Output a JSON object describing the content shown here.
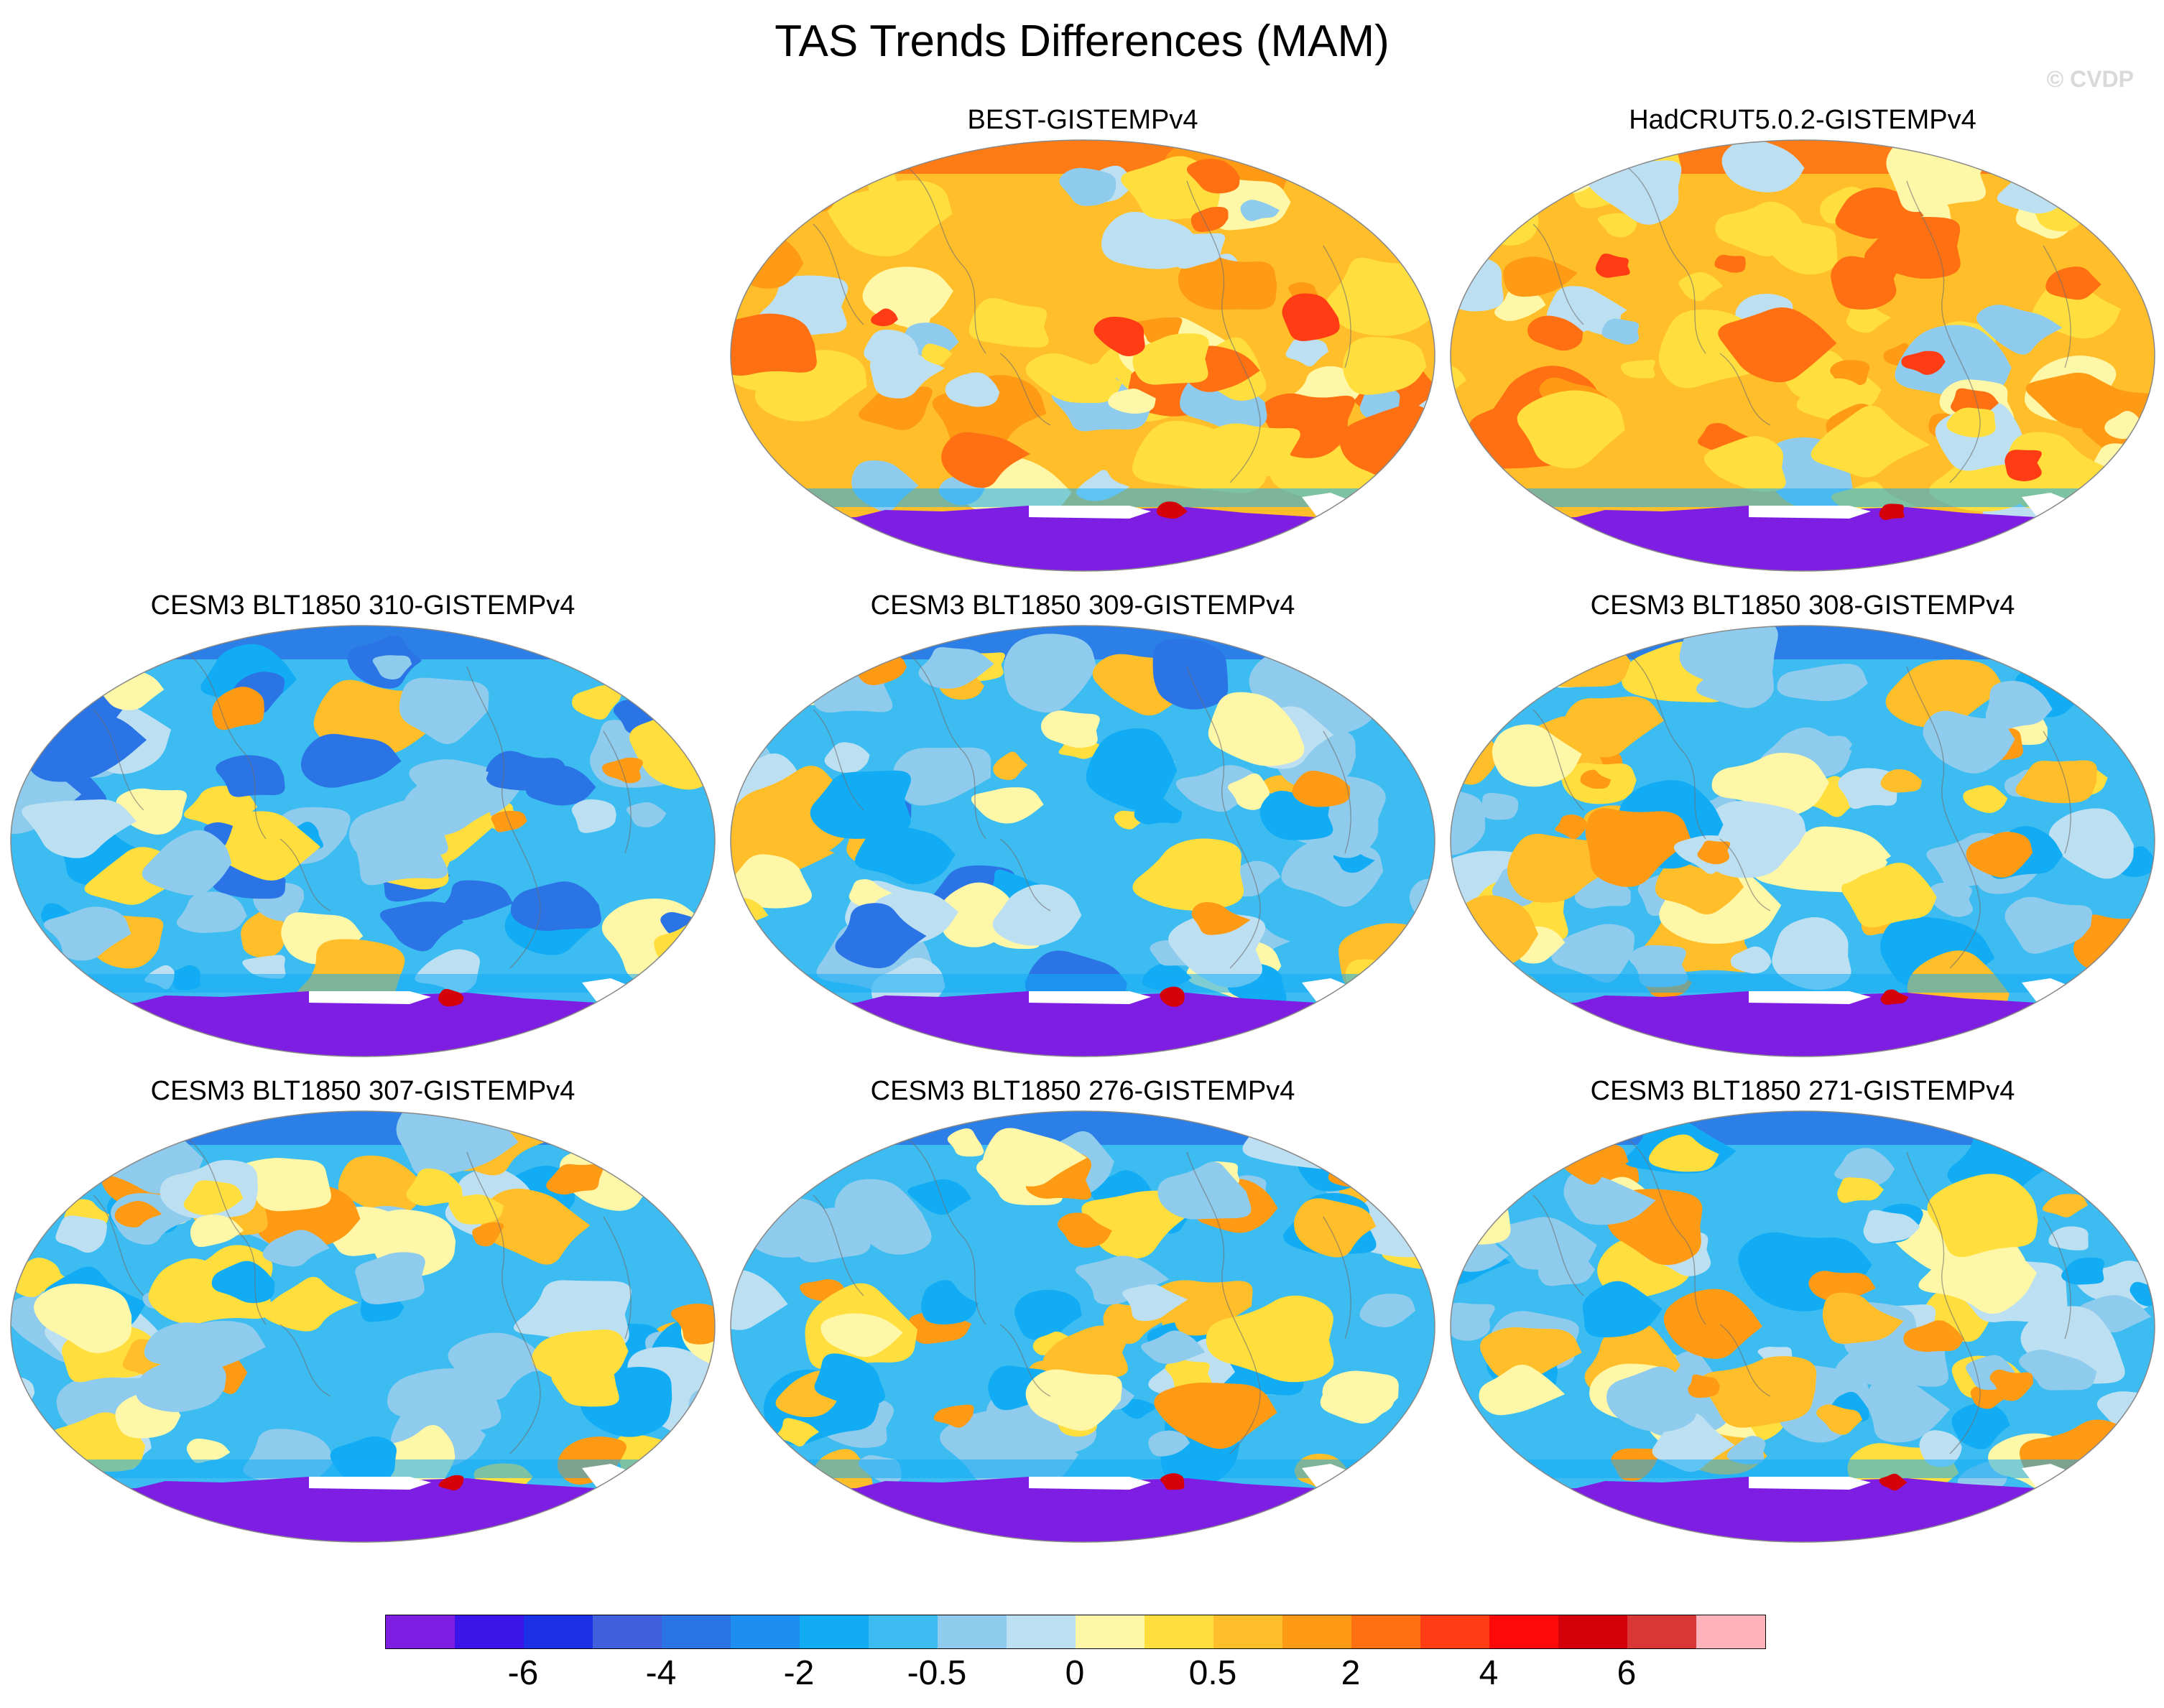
{
  "figure": {
    "title": "TAS Trends Differences (MAM)",
    "credit": "© CVDP"
  },
  "panels": [
    {
      "id": "p1",
      "title": "BEST-GISTEMPv4",
      "pattern": "warm",
      "seed": 3
    },
    {
      "id": "p2",
      "title": "HadCRUT5.0.2-GISTEMPv4",
      "pattern": "warm",
      "seed": 7
    },
    {
      "id": "p3",
      "title": "CESM3 BLT1850 310-GISTEMPv4",
      "pattern": "cold",
      "seed": 11
    },
    {
      "id": "p4",
      "title": "CESM3 BLT1850 309-GISTEMPv4",
      "pattern": "cold",
      "seed": 17
    },
    {
      "id": "p5",
      "title": "CESM3 BLT1850 308-GISTEMPv4",
      "pattern": "mixed",
      "seed": 23
    },
    {
      "id": "p6",
      "title": "CESM3 BLT1850 307-GISTEMPv4",
      "pattern": "mixed",
      "seed": 29
    },
    {
      "id": "p7",
      "title": "CESM3 BLT1850 276-GISTEMPv4",
      "pattern": "mixed",
      "seed": 31
    },
    {
      "id": "p8",
      "title": "CESM3 BLT1850 271-GISTEMPv4",
      "pattern": "mixed",
      "seed": 37
    }
  ],
  "colorbar": {
    "colors": [
      "#7e1ee3",
      "#3a14e8",
      "#1c30e6",
      "#3f5fdc",
      "#2a74e6",
      "#1e8ef0",
      "#12acf5",
      "#3cbcf0",
      "#8ecbec",
      "#bcdff2",
      "#fff7a8",
      "#ffde3d",
      "#ffbe2a",
      "#ff9a14",
      "#ff7012",
      "#ff3c14",
      "#ff0a0a",
      "#d4000a",
      "#d93636",
      "#ffb2b9"
    ],
    "labels": [
      "-6",
      "-4",
      "-2",
      "-0.5",
      "0",
      "0.5",
      "2",
      "4",
      "6"
    ]
  }
}
